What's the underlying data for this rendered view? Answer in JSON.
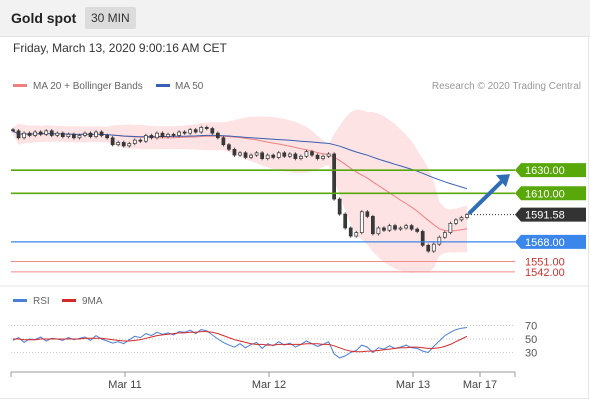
{
  "header": {
    "title": "Gold spot",
    "timeframe": "30 MIN",
    "datetime": "Friday, March 13, 2020 9:00:16 AM CET"
  },
  "legend": {
    "ma20": "MA 20 + Bollinger Bands",
    "ma50": "MA 50",
    "credit": "Research © 2020 Trading Central",
    "rsi": "RSI",
    "rsi_ma": "9MA"
  },
  "colors": {
    "resistance": "#59a80a",
    "support": "#3a86ea",
    "minor_support": "#f28b8b",
    "last_price_bg": "#333333",
    "ma20": "#f08080",
    "ma50": "#3a5fb0",
    "bands_fill": "#fde3e3",
    "arrow": "#2f6db5",
    "rsi_line": "#4a7fd8",
    "rsi_ma_line": "#d42a2a"
  },
  "chart_data": [
    {
      "type": "candlestick",
      "y_range": [
        1535,
        1695
      ],
      "x_ticks": [
        "Mar 11",
        "Mar 12",
        "Mar 13",
        "Mar 17"
      ],
      "series": [
        {
          "name": "MA 20 + Bollinger Bands",
          "kind": "ma_with_bands"
        },
        {
          "name": "MA 50",
          "kind": "ma"
        }
      ],
      "close_approx": [
        1664,
        1658,
        1662,
        1660,
        1663,
        1661,
        1664,
        1660,
        1662,
        1659,
        1661,
        1658,
        1660,
        1662,
        1659,
        1663,
        1660,
        1658,
        1652,
        1654,
        1651,
        1653,
        1656,
        1655,
        1660,
        1658,
        1662,
        1659,
        1661,
        1660,
        1663,
        1662,
        1665,
        1663,
        1667,
        1666,
        1662,
        1658,
        1652,
        1648,
        1643,
        1645,
        1641,
        1643,
        1645,
        1640,
        1643,
        1641,
        1645,
        1642,
        1644,
        1640,
        1642,
        1646,
        1643,
        1640,
        1642,
        1644,
        1605,
        1592,
        1580,
        1573,
        1576,
        1594,
        1590,
        1575,
        1580,
        1578,
        1582,
        1579,
        1580,
        1582,
        1579,
        1577,
        1565,
        1560,
        1566,
        1572,
        1576,
        1584,
        1587,
        1589,
        1591.58
      ],
      "levels": [
        {
          "label": "1630.00",
          "value": 1630.0,
          "kind": "resistance"
        },
        {
          "label": "1610.00",
          "value": 1610.0,
          "kind": "resistance"
        },
        {
          "label": "1591.58",
          "value": 1591.58,
          "kind": "last_price"
        },
        {
          "label": "1568.00",
          "value": 1568.0,
          "kind": "support"
        },
        {
          "label": "1551.00",
          "value": 1551.0,
          "kind": "minor_support"
        },
        {
          "label": "1542.00",
          "value": 1542.0,
          "kind": "minor_support"
        }
      ],
      "projection": {
        "from": 1591.58,
        "to": 1630.0,
        "direction": "up"
      }
    },
    {
      "type": "line",
      "title": "RSI",
      "y_range": [
        10,
        90
      ],
      "y_ticks": [
        70,
        50,
        30
      ],
      "series": [
        {
          "name": "RSI",
          "values": [
            48,
            52,
            45,
            50,
            49,
            53,
            47,
            51,
            50,
            48,
            52,
            49,
            51,
            53,
            48,
            55,
            50,
            47,
            44,
            46,
            43,
            49,
            54,
            52,
            58,
            55,
            60,
            57,
            59,
            56,
            61,
            60,
            63,
            58,
            64,
            62,
            56,
            50,
            45,
            41,
            38,
            43,
            37,
            42,
            45,
            36,
            43,
            40,
            46,
            41,
            44,
            38,
            42,
            47,
            43,
            39,
            42,
            46,
            28,
            22,
            25,
            30,
            33,
            41,
            38,
            30,
            37,
            35,
            40,
            36,
            38,
            41,
            37,
            36,
            32,
            30,
            39,
            47,
            55,
            60,
            64,
            66,
            67
          ]
        },
        {
          "name": "9MA",
          "values": [
            50,
            50,
            49,
            49,
            49,
            50,
            50,
            50,
            50,
            50,
            50,
            50,
            50,
            51,
            51,
            51,
            51,
            50,
            49,
            48,
            47,
            47,
            48,
            49,
            51,
            53,
            55,
            56,
            57,
            58,
            59,
            59,
            60,
            60,
            61,
            61,
            60,
            58,
            55,
            52,
            49,
            47,
            45,
            43,
            42,
            42,
            41,
            41,
            42,
            42,
            42,
            42,
            42,
            43,
            43,
            43,
            42,
            42,
            40,
            37,
            34,
            32,
            31,
            31,
            32,
            32,
            33,
            34,
            35,
            36,
            37,
            37,
            38,
            38,
            37,
            36,
            36,
            37,
            39,
            42,
            46,
            50,
            54
          ]
        }
      ]
    }
  ]
}
